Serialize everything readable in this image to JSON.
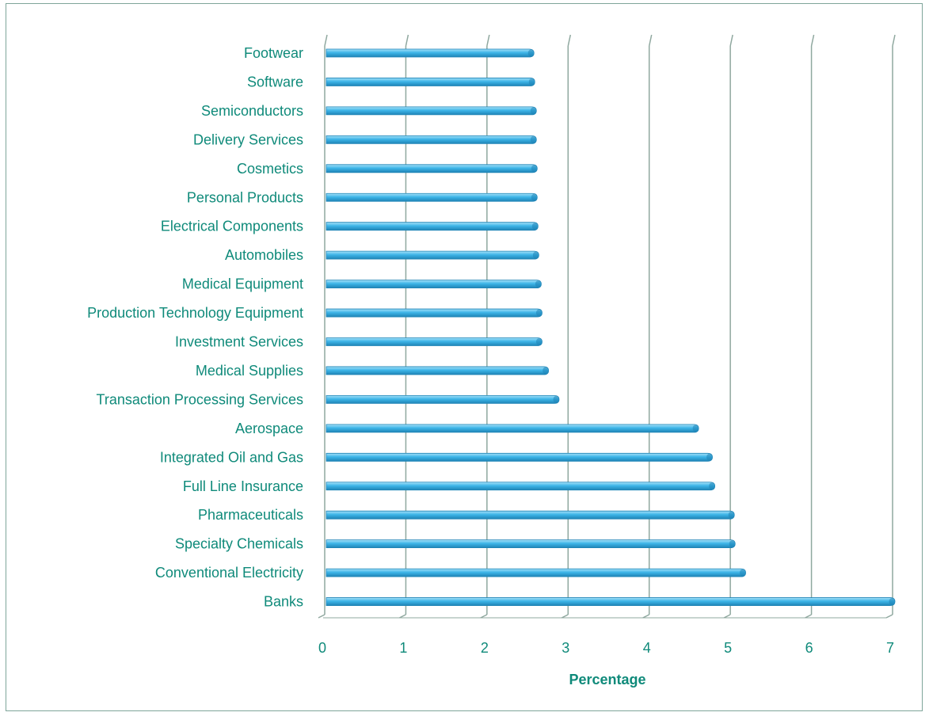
{
  "chart_data": {
    "type": "bar",
    "orientation": "horizontal",
    "categories": [
      "Footwear",
      "Software",
      "Semiconductors",
      "Delivery Services",
      "Cosmetics",
      "Personal Products",
      "Electrical Components",
      "Automobiles",
      "Medical Equipment",
      "Production Technology Equipment",
      "Investment Services",
      "Medical Supplies",
      "Transaction Processing Services",
      "Aerospace",
      "Integrated Oil and Gas",
      "Full Line Insurance",
      "Pharmaceuticals",
      "Specialty Chemicals",
      "Conventional Electricity",
      "Banks"
    ],
    "values": [
      2.55,
      2.56,
      2.58,
      2.58,
      2.59,
      2.59,
      2.6,
      2.61,
      2.64,
      2.65,
      2.65,
      2.73,
      2.86,
      4.58,
      4.75,
      4.78,
      5.02,
      5.03,
      5.16,
      7.0
    ],
    "xlim": [
      0,
      7
    ],
    "xticks": [
      "0",
      "1",
      "2",
      "3",
      "4",
      "5",
      "6",
      "7"
    ],
    "xlabel": "Percentage",
    "ylabel": "",
    "title": "",
    "grid": "vertical",
    "colors": {
      "bar": "#3db5e8",
      "bar_dark": "#1f84b6",
      "bar_light": "#a6e1f8",
      "text": "#0f8a7a",
      "grid": "#8fa89f",
      "frame": "#7fa59a"
    }
  }
}
